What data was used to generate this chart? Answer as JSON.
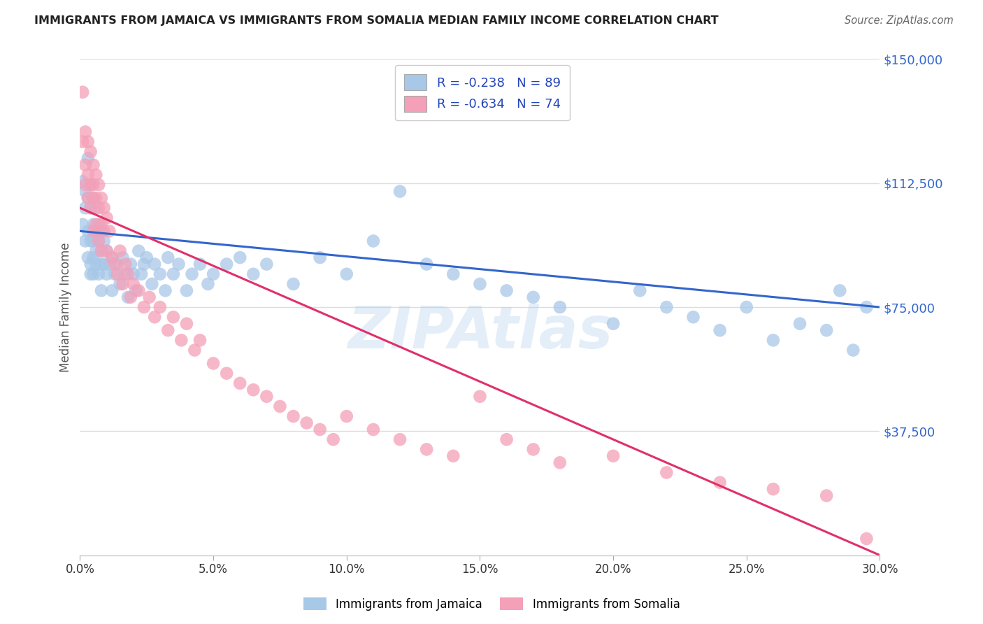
{
  "title": "IMMIGRANTS FROM JAMAICA VS IMMIGRANTS FROM SOMALIA MEDIAN FAMILY INCOME CORRELATION CHART",
  "source": "Source: ZipAtlas.com",
  "ylabel_label": "Median Family Income",
  "x_min": 0.0,
  "x_max": 0.3,
  "y_min": 0,
  "y_max": 150000,
  "y_ticks": [
    37500,
    75000,
    112500,
    150000
  ],
  "x_ticks": [
    0.0,
    0.05,
    0.1,
    0.15,
    0.2,
    0.25,
    0.3
  ],
  "jamaica_R": -0.238,
  "jamaica_N": 89,
  "somalia_R": -0.634,
  "somalia_N": 74,
  "jamaica_color": "#a8c8e8",
  "somalia_color": "#f4a0b8",
  "jamaica_line_color": "#3366cc",
  "somalia_line_color": "#e0306a",
  "background_color": "#ffffff",
  "grid_color": "#dddddd",
  "watermark": "ZIPAtlas",
  "jamaica_line_x0": 0.0,
  "jamaica_line_y0": 98000,
  "jamaica_line_x1": 0.3,
  "jamaica_line_y1": 75000,
  "somalia_line_x0": 0.0,
  "somalia_line_y0": 105000,
  "somalia_line_x1": 0.3,
  "somalia_line_y1": 0,
  "jamaica_x": [
    0.001,
    0.001,
    0.002,
    0.002,
    0.002,
    0.003,
    0.003,
    0.003,
    0.003,
    0.004,
    0.004,
    0.004,
    0.004,
    0.004,
    0.005,
    0.005,
    0.005,
    0.005,
    0.005,
    0.006,
    0.006,
    0.006,
    0.006,
    0.007,
    0.007,
    0.007,
    0.008,
    0.008,
    0.008,
    0.008,
    0.009,
    0.009,
    0.01,
    0.01,
    0.011,
    0.012,
    0.012,
    0.013,
    0.014,
    0.015,
    0.016,
    0.017,
    0.018,
    0.019,
    0.02,
    0.021,
    0.022,
    0.023,
    0.024,
    0.025,
    0.027,
    0.028,
    0.03,
    0.032,
    0.033,
    0.035,
    0.037,
    0.04,
    0.042,
    0.045,
    0.048,
    0.05,
    0.055,
    0.06,
    0.065,
    0.07,
    0.08,
    0.09,
    0.1,
    0.11,
    0.12,
    0.13,
    0.14,
    0.15,
    0.16,
    0.17,
    0.18,
    0.2,
    0.21,
    0.22,
    0.23,
    0.24,
    0.25,
    0.26,
    0.27,
    0.28,
    0.285,
    0.29,
    0.295
  ],
  "jamaica_y": [
    113000,
    100000,
    110000,
    105000,
    95000,
    120000,
    108000,
    98000,
    90000,
    112000,
    105000,
    95000,
    88000,
    85000,
    108000,
    100000,
    95000,
    90000,
    85000,
    105000,
    98000,
    92000,
    88000,
    100000,
    95000,
    85000,
    98000,
    92000,
    88000,
    80000,
    95000,
    88000,
    92000,
    85000,
    88000,
    90000,
    80000,
    85000,
    88000,
    82000,
    90000,
    85000,
    78000,
    88000,
    85000,
    80000,
    92000,
    85000,
    88000,
    90000,
    82000,
    88000,
    85000,
    80000,
    90000,
    85000,
    88000,
    80000,
    85000,
    88000,
    82000,
    85000,
    88000,
    90000,
    85000,
    88000,
    82000,
    90000,
    85000,
    95000,
    110000,
    88000,
    85000,
    82000,
    80000,
    78000,
    75000,
    70000,
    80000,
    75000,
    72000,
    68000,
    75000,
    65000,
    70000,
    68000,
    80000,
    62000,
    75000
  ],
  "somalia_x": [
    0.001,
    0.001,
    0.002,
    0.002,
    0.002,
    0.003,
    0.003,
    0.003,
    0.004,
    0.004,
    0.004,
    0.005,
    0.005,
    0.005,
    0.005,
    0.006,
    0.006,
    0.006,
    0.007,
    0.007,
    0.007,
    0.008,
    0.008,
    0.008,
    0.009,
    0.009,
    0.01,
    0.01,
    0.011,
    0.012,
    0.013,
    0.014,
    0.015,
    0.016,
    0.017,
    0.018,
    0.019,
    0.02,
    0.022,
    0.024,
    0.026,
    0.028,
    0.03,
    0.033,
    0.035,
    0.038,
    0.04,
    0.043,
    0.045,
    0.05,
    0.055,
    0.06,
    0.065,
    0.07,
    0.075,
    0.08,
    0.085,
    0.09,
    0.095,
    0.1,
    0.11,
    0.12,
    0.13,
    0.14,
    0.15,
    0.16,
    0.17,
    0.18,
    0.2,
    0.22,
    0.24,
    0.26,
    0.28,
    0.295
  ],
  "somalia_y": [
    140000,
    125000,
    128000,
    118000,
    112000,
    125000,
    115000,
    108000,
    122000,
    112000,
    105000,
    118000,
    112000,
    108000,
    98000,
    115000,
    108000,
    100000,
    112000,
    105000,
    95000,
    108000,
    100000,
    92000,
    105000,
    98000,
    102000,
    92000,
    98000,
    90000,
    88000,
    85000,
    92000,
    82000,
    88000,
    85000,
    78000,
    82000,
    80000,
    75000,
    78000,
    72000,
    75000,
    68000,
    72000,
    65000,
    70000,
    62000,
    65000,
    58000,
    55000,
    52000,
    50000,
    48000,
    45000,
    42000,
    40000,
    38000,
    35000,
    42000,
    38000,
    35000,
    32000,
    30000,
    48000,
    35000,
    32000,
    28000,
    30000,
    25000,
    22000,
    20000,
    18000,
    5000
  ]
}
